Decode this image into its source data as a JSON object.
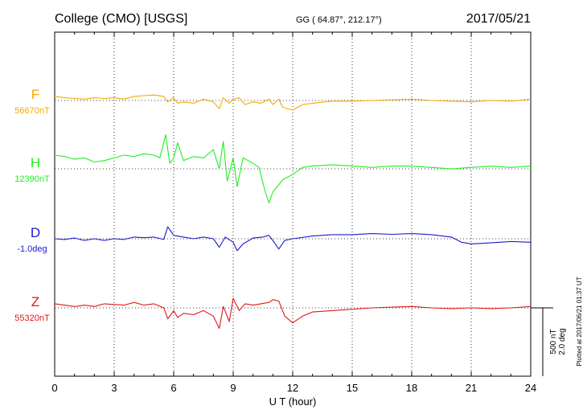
{
  "header": {
    "station": "College (CMO)  [USGS]",
    "coords": "GG ( 64.87°, 212.17°)",
    "date": "2017/05/21"
  },
  "footer_note": "Plotted at 2017/06/21 01:37 UT",
  "scale_labels": [
    "500 nT",
    "2.0 deg"
  ],
  "chart_data": {
    "type": "line",
    "xlabel": "U T (hour)",
    "xlim": [
      0,
      24
    ],
    "xticks": [
      0,
      3,
      6,
      9,
      12,
      15,
      18,
      21,
      24
    ],
    "grid": true,
    "scale": {
      "nT_per_bar": 500,
      "deg_per_bar": 2.0
    },
    "series": [
      {
        "name": "F",
        "baseline_label": "56670nT",
        "color": "#f5a800",
        "values": [
          [
            0,
            56700
          ],
          [
            0.5,
            56690
          ],
          [
            1,
            56685
          ],
          [
            1.5,
            56680
          ],
          [
            2,
            56690
          ],
          [
            2.5,
            56685
          ],
          [
            3,
            56690
          ],
          [
            3.5,
            56680
          ],
          [
            4,
            56700
          ],
          [
            4.5,
            56705
          ],
          [
            5,
            56710
          ],
          [
            5.5,
            56700
          ],
          [
            5.7,
            56660
          ],
          [
            6,
            56690
          ],
          [
            6.2,
            56650
          ],
          [
            6.5,
            56660
          ],
          [
            7,
            56650
          ],
          [
            7.5,
            56680
          ],
          [
            8,
            56660
          ],
          [
            8.3,
            56610
          ],
          [
            8.5,
            56690
          ],
          [
            8.8,
            56650
          ],
          [
            9,
            56680
          ],
          [
            9.3,
            56690
          ],
          [
            9.6,
            56640
          ],
          [
            10,
            56660
          ],
          [
            10.4,
            56650
          ],
          [
            10.8,
            56680
          ],
          [
            11,
            56640
          ],
          [
            11.3,
            56680
          ],
          [
            11.5,
            56620
          ],
          [
            12,
            56600
          ],
          [
            12.5,
            56640
          ],
          [
            13,
            56650
          ],
          [
            14,
            56665
          ],
          [
            15,
            56665
          ],
          [
            16,
            56670
          ],
          [
            17,
            56675
          ],
          [
            18,
            56680
          ],
          [
            19,
            56670
          ],
          [
            20,
            56665
          ],
          [
            21,
            56660
          ],
          [
            22,
            56670
          ],
          [
            23,
            56665
          ],
          [
            24,
            56680
          ]
        ]
      },
      {
        "name": "H",
        "baseline_label": "12390nT",
        "color": "#22ee22",
        "values": [
          [
            0,
            12490
          ],
          [
            0.5,
            12480
          ],
          [
            1,
            12460
          ],
          [
            1.5,
            12470
          ],
          [
            2,
            12440
          ],
          [
            2.5,
            12450
          ],
          [
            3,
            12470
          ],
          [
            3.5,
            12490
          ],
          [
            4,
            12480
          ],
          [
            4.5,
            12500
          ],
          [
            5,
            12490
          ],
          [
            5.3,
            12470
          ],
          [
            5.6,
            12640
          ],
          [
            5.8,
            12430
          ],
          [
            6,
            12470
          ],
          [
            6.2,
            12580
          ],
          [
            6.5,
            12450
          ],
          [
            7,
            12480
          ],
          [
            7.5,
            12470
          ],
          [
            8,
            12530
          ],
          [
            8.3,
            12390
          ],
          [
            8.5,
            12590
          ],
          [
            8.7,
            12300
          ],
          [
            9,
            12470
          ],
          [
            9.2,
            12260
          ],
          [
            9.5,
            12470
          ],
          [
            10,
            12430
          ],
          [
            10.3,
            12400
          ],
          [
            10.6,
            12230
          ],
          [
            10.8,
            12140
          ],
          [
            11,
            12220
          ],
          [
            11.5,
            12310
          ],
          [
            12,
            12350
          ],
          [
            12.5,
            12400
          ],
          [
            13,
            12410
          ],
          [
            14,
            12420
          ],
          [
            15,
            12410
          ],
          [
            16,
            12400
          ],
          [
            17,
            12410
          ],
          [
            18,
            12410
          ],
          [
            19,
            12400
          ],
          [
            20,
            12390
          ],
          [
            21,
            12400
          ],
          [
            22,
            12410
          ],
          [
            23,
            12400
          ],
          [
            24,
            12410
          ]
        ]
      },
      {
        "name": "D",
        "baseline_label": "-1.0deg",
        "color": "#1a1ad0",
        "values": [
          [
            0,
            -1.0
          ],
          [
            0.5,
            -1.02
          ],
          [
            1,
            -0.98
          ],
          [
            1.5,
            -1.05
          ],
          [
            2,
            -1.0
          ],
          [
            2.5,
            -1.05
          ],
          [
            3,
            -1.0
          ],
          [
            3.5,
            -1.02
          ],
          [
            4,
            -0.95
          ],
          [
            4.5,
            -0.97
          ],
          [
            5,
            -0.95
          ],
          [
            5.5,
            -1.02
          ],
          [
            5.7,
            -0.65
          ],
          [
            6,
            -0.9
          ],
          [
            6.5,
            -0.95
          ],
          [
            7,
            -1.0
          ],
          [
            7.5,
            -0.95
          ],
          [
            8,
            -1.0
          ],
          [
            8.3,
            -1.25
          ],
          [
            8.6,
            -0.95
          ],
          [
            9,
            -1.1
          ],
          [
            9.2,
            -1.35
          ],
          [
            9.5,
            -1.15
          ],
          [
            10,
            -0.98
          ],
          [
            10.5,
            -0.95
          ],
          [
            10.8,
            -0.9
          ],
          [
            11,
            -1.05
          ],
          [
            11.3,
            -1.3
          ],
          [
            11.6,
            -1.05
          ],
          [
            12,
            -1.0
          ],
          [
            13,
            -0.92
          ],
          [
            14,
            -0.88
          ],
          [
            15,
            -0.88
          ],
          [
            16,
            -0.85
          ],
          [
            17,
            -0.87
          ],
          [
            18,
            -0.85
          ],
          [
            19,
            -0.88
          ],
          [
            20,
            -0.95
          ],
          [
            20.5,
            -1.1
          ],
          [
            21,
            -1.15
          ],
          [
            22,
            -1.12
          ],
          [
            23,
            -1.08
          ],
          [
            24,
            -1.1
          ]
        ]
      },
      {
        "name": "Z",
        "baseline_label": "55320nT",
        "color": "#e01818",
        "values": [
          [
            0,
            55350
          ],
          [
            0.5,
            55340
          ],
          [
            1,
            55330
          ],
          [
            1.5,
            55340
          ],
          [
            2,
            55330
          ],
          [
            2.5,
            55350
          ],
          [
            3,
            55345
          ],
          [
            3.5,
            55340
          ],
          [
            4,
            55360
          ],
          [
            4.5,
            55340
          ],
          [
            5,
            55350
          ],
          [
            5.5,
            55320
          ],
          [
            5.7,
            55240
          ],
          [
            6,
            55300
          ],
          [
            6.2,
            55250
          ],
          [
            6.5,
            55280
          ],
          [
            7,
            55270
          ],
          [
            7.5,
            55300
          ],
          [
            8,
            55260
          ],
          [
            8.3,
            55170
          ],
          [
            8.5,
            55330
          ],
          [
            8.8,
            55220
          ],
          [
            9,
            55390
          ],
          [
            9.3,
            55300
          ],
          [
            9.6,
            55350
          ],
          [
            10,
            55340
          ],
          [
            10.4,
            55350
          ],
          [
            10.8,
            55360
          ],
          [
            11,
            55380
          ],
          [
            11.3,
            55370
          ],
          [
            11.6,
            55260
          ],
          [
            12,
            55210
          ],
          [
            12.5,
            55260
          ],
          [
            13,
            55290
          ],
          [
            14,
            55300
          ],
          [
            15,
            55310
          ],
          [
            16,
            55320
          ],
          [
            17,
            55325
          ],
          [
            18,
            55330
          ],
          [
            19,
            55320
          ],
          [
            20,
            55315
          ],
          [
            21,
            55320
          ],
          [
            22,
            55315
          ],
          [
            23,
            55320
          ],
          [
            24,
            55330
          ]
        ]
      }
    ]
  }
}
